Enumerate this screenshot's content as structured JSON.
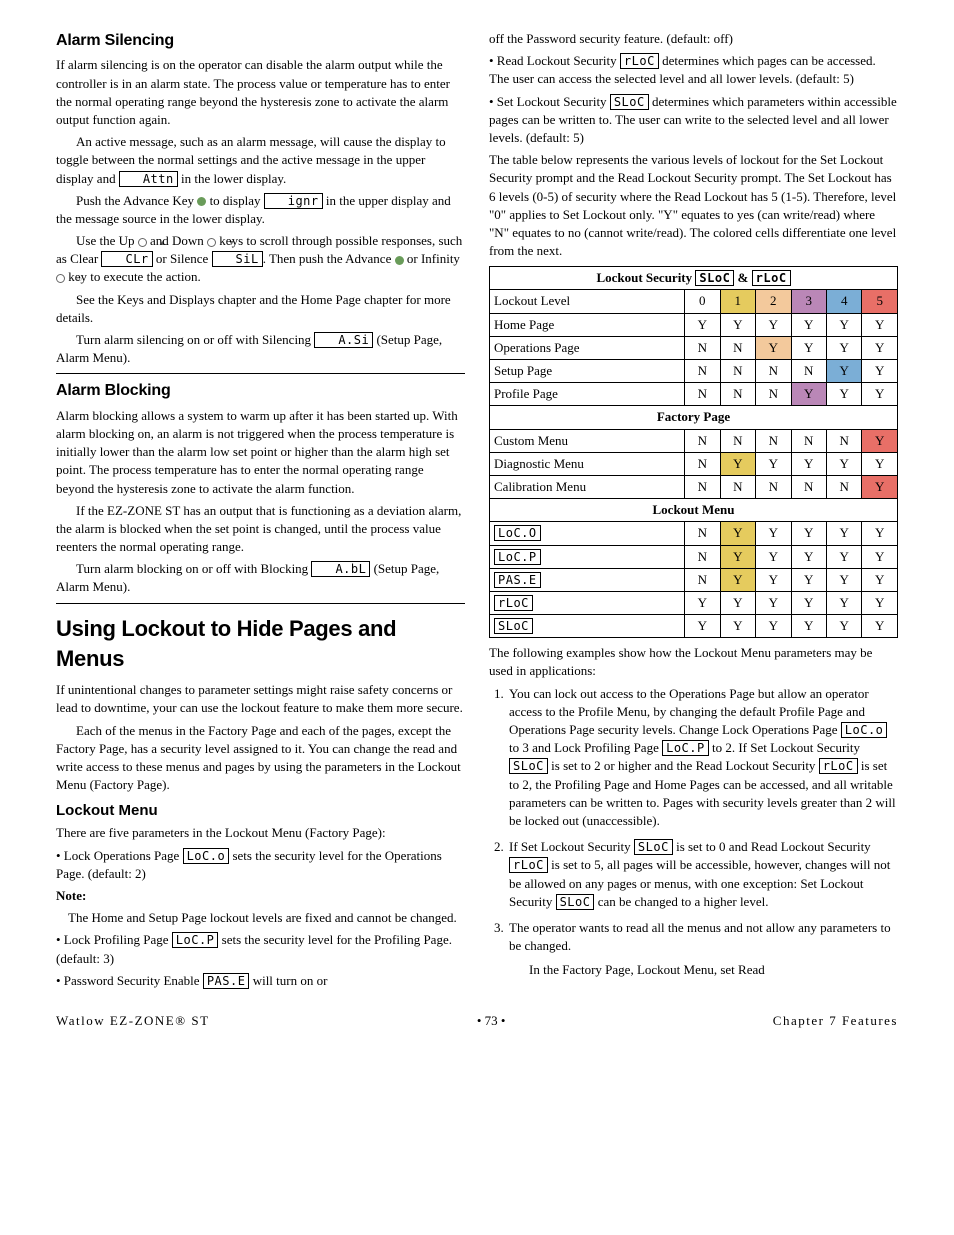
{
  "colors": {
    "level1": "#e5cb5e",
    "level2": "#f3c99c",
    "level3": "#ba87b7",
    "level4": "#7baed6",
    "level5": "#e86f67"
  },
  "left": {
    "alarm_silencing": {
      "title": "Alarm Silencing",
      "p1": "If alarm silencing is on the operator can disable the alarm output while the controller is in an alarm state. The process value or temperature has to enter the normal operating range beyond the hysteresis zone to activate the alarm output function again.",
      "p2a": "An active message, such as an alarm message, will cause the display to toggle between the normal settings and the active message in the upper display and ",
      "seg1": "Attn",
      "p2b": " in the lower display.",
      "p3a": "Push the Advance Key ",
      "p3b": " to display ",
      "seg2": "ignr",
      "p3c": " in the upper display and the message source in the lower display.",
      "p4a": "Use the Up ",
      "p4b": " and Down ",
      "p4c": " keys to scroll through possible responses, such as Clear ",
      "seg3": " CLr",
      "p4d": " or Silence ",
      "seg4": " SiL",
      "p4e": ". Then push the Advance ",
      "p4f": " or Infinity ",
      "p4g": " key to execute the action.",
      "p5": "See the Keys and Displays chapter and the Home Page chapter for more details.",
      "p6a": "Turn alarm silencing on or off with Silencing ",
      "seg5": " A.Si",
      "p6b": " (Setup Page, Alarm Menu)."
    },
    "alarm_blocking": {
      "title": "Alarm Blocking",
      "p1": "Alarm blocking allows a system to warm up after it has been started up. With alarm blocking on, an alarm is not triggered when the process temperature is initially lower than the alarm low set point or higher than the alarm high set point. The process temperature has to enter the normal operating range beyond the hysteresis zone to activate the alarm function.",
      "p2": "If the EZ-ZONE ST has an output that is functioning as a deviation alarm, the alarm is blocked when the set point is changed, until the process value reenters the normal operating range.",
      "p3a": "Turn alarm blocking on or off with Blocking ",
      "seg1": " A.bL",
      "p3b": " (Setup Page, Alarm Menu)."
    },
    "lockout": {
      "title": "Using Lockout to Hide Pages and Menus",
      "p1": "If unintentional changes to parameter settings might raise safety concerns or lead to downtime, your can use the lockout feature to make them more secure.",
      "p2": "Each of the menus in the Factory Page and each of the pages, except the Factory Page, has a security level assigned to it. You can change the read and write access to these menus and pages by using the parameters in the Lockout Menu (Factory Page).",
      "sub": "Lockout Menu",
      "p3": "There are five parameters in the Lockout Menu (Factory Page):",
      "b1a": "• Lock Operations Page ",
      "seg1": "LoC.o",
      "b1b": " sets the security level for the Operations Page. (default: 2)",
      "note_label": "Note:",
      "note_text": "The Home and Setup Page lockout levels are fixed and cannot be changed.",
      "b2a": "• Lock Profiling Page ",
      "seg2": "LoC.P",
      "b2b": " sets the security level for the Profiling Page. (default: 3)",
      "b3a": "• Password Security Enable ",
      "seg3": "PAS.E",
      "b3b": " will turn on or"
    }
  },
  "right": {
    "cont": {
      "p1": "off the Password security feature. (default: off)",
      "b1a": "• Read Lockout Security ",
      "seg1": "rLoC",
      "b1b": " determines which pages can be accessed. The user can access the selected level and all lower levels. (default: 5)",
      "b2a": "• Set Lockout Security ",
      "seg2": "SLoC",
      "b2b": " determines which parameters within accessible pages can be written to. The user can write to the selected level and all lower levels. (default: 5)",
      "p2": "The table below represents the various levels of lockout for the Set Lockout Security prompt and the Read Lockout Security prompt. The Set Lockout has 6 levels (0-5) of security where the Read Lockout has 5 (1-5). Therefore, level \"0\" applies to Set Lockout only. \"Y\" equates to yes (can write/read) where \"N\" equates to no (cannot write/read). The colored cells differentiate one level from the next."
    },
    "table": {
      "title_a": "Lockout Security ",
      "seg_sloc": "SLoC",
      "title_amp": " & ",
      "seg_rloc": "rLoC",
      "header_label": "Lockout Level",
      "levels": [
        "0",
        "1",
        "2",
        "3",
        "4",
        "5"
      ],
      "rows_top": [
        {
          "label": "Home Page",
          "v": [
            "Y",
            "Y",
            "Y",
            "Y",
            "Y",
            "Y"
          ],
          "hl": [
            0,
            0,
            0,
            0,
            0,
            0
          ]
        },
        {
          "label": "Operations Page",
          "v": [
            "N",
            "N",
            "Y",
            "Y",
            "Y",
            "Y"
          ],
          "hl": [
            0,
            0,
            2,
            0,
            0,
            0
          ]
        },
        {
          "label": "Setup Page",
          "v": [
            "N",
            "N",
            "N",
            "N",
            "Y",
            "Y"
          ],
          "hl": [
            0,
            0,
            0,
            0,
            4,
            0
          ]
        },
        {
          "label": "Profile Page",
          "v": [
            "N",
            "N",
            "N",
            "Y",
            "Y",
            "Y"
          ],
          "hl": [
            0,
            0,
            0,
            3,
            0,
            0
          ]
        }
      ],
      "section1": "Factory Page",
      "rows_factory": [
        {
          "label": "Custom Menu",
          "v": [
            "N",
            "N",
            "N",
            "N",
            "N",
            "Y"
          ],
          "hl": [
            0,
            0,
            0,
            0,
            0,
            5
          ]
        },
        {
          "label": "Diagnostic Menu",
          "v": [
            "N",
            "Y",
            "Y",
            "Y",
            "Y",
            "Y"
          ],
          "hl": [
            0,
            1,
            0,
            0,
            0,
            0
          ]
        },
        {
          "label": "Calibration Menu",
          "v": [
            "N",
            "N",
            "N",
            "N",
            "N",
            "Y"
          ],
          "hl": [
            0,
            0,
            0,
            0,
            0,
            5
          ]
        }
      ],
      "section2": "Lockout Menu",
      "rows_lockout_seg": [
        {
          "label": "LoC.O",
          "v": [
            "N",
            "Y",
            "Y",
            "Y",
            "Y",
            "Y"
          ],
          "hl": [
            0,
            1,
            0,
            0,
            0,
            0
          ]
        },
        {
          "label": "LoC.P",
          "v": [
            "N",
            "Y",
            "Y",
            "Y",
            "Y",
            "Y"
          ],
          "hl": [
            0,
            1,
            0,
            0,
            0,
            0
          ]
        },
        {
          "label": "PAS.E",
          "v": [
            "N",
            "Y",
            "Y",
            "Y",
            "Y",
            "Y"
          ],
          "hl": [
            0,
            1,
            0,
            0,
            0,
            0
          ]
        },
        {
          "label": "rLoC",
          "v": [
            "Y",
            "Y",
            "Y",
            "Y",
            "Y",
            "Y"
          ],
          "hl": [
            0,
            0,
            0,
            0,
            0,
            0
          ]
        },
        {
          "label": "SLoC",
          "v": [
            "Y",
            "Y",
            "Y",
            "Y",
            "Y",
            "Y"
          ],
          "hl": [
            0,
            0,
            0,
            0,
            0,
            0
          ]
        }
      ]
    },
    "examples": {
      "intro": "The following examples show how the Lockout Menu parameters may be used in applications:",
      "e1a": "You can lock out access to the Operations Page but allow an operator access to the Profile Menu, by changing the default Profile Page and Operations Page security levels. Change Lock Operations Page ",
      "seg1": "LoC.o",
      "e1b": " to 3 and Lock Profiling Page ",
      "seg2": "LoC.P",
      "e1c": " to 2. If Set Lockout Security ",
      "seg3": "SLoC",
      "e1d": " is set to 2 or higher and the Read Lockout Security ",
      "seg4": "rLoC",
      "e1e": " is set to 2, the Profiling Page and Home Pages can be accessed, and all writable parameters can be written to. Pages with security levels greater than 2 will be locked out (unaccessible).",
      "e2a": "If Set Lockout Security ",
      "seg5": "SLoC",
      "e2b": " is set to 0 and Read Lockout Security ",
      "seg6": "rLoC",
      "e2c": " is set to 5, all pages will be accessible, however, changes will not be allowed on any pages or menus, with one exception: Set Lockout Security ",
      "seg7": "SLoC",
      "e2d": " can be changed to a higher level.",
      "e3": "The operator wants to read all the menus and not allow any parameters to be changed.",
      "e3b": "In the Factory Page, Lockout Menu, set Read"
    }
  },
  "footer": {
    "left": "Watlow EZ-ZONE® ST",
    "center": "• 73 •",
    "right": "Chapter 7 Features"
  }
}
